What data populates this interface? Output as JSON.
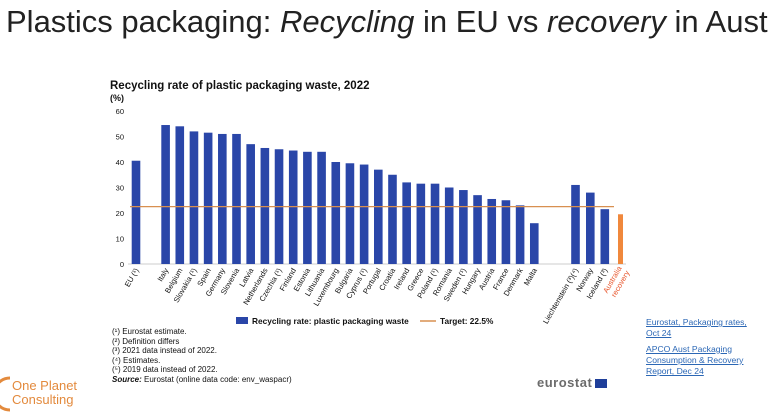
{
  "slide": {
    "title_part1": "Plastics packaging: ",
    "title_part2": "Recycling",
    "title_part3": " in EU vs ",
    "title_part4": "recovery",
    "title_part5": " in Aust"
  },
  "chart_data": {
    "type": "bar",
    "title": "Recycling rate of plastic packaging waste, 2022",
    "ylabel": "(%)",
    "ylim": [
      0,
      60
    ],
    "yticks": [
      0,
      10,
      20,
      30,
      40,
      50,
      60
    ],
    "target": {
      "label": "Target: 22.5%",
      "value": 22.5,
      "color": "#d89050"
    },
    "legend": {
      "series_label": "Recycling rate: plastic packaging waste",
      "position": "bottom"
    },
    "series_color": "#2a46a8",
    "highlight_color": "#f0883c",
    "categories": [
      "EU (¹)",
      "Italy",
      "Belgium",
      "Slovakia (¹)",
      "Spain",
      "Germany",
      "Slovenia",
      "Latvia",
      "Netherlands",
      "Czechia (¹)",
      "Finland",
      "Estonia",
      "Lithuania",
      "Luxembourg",
      "Bulgaria",
      "Cyprus (¹)",
      "Portugal",
      "Croatia",
      "Ireland",
      "Greece",
      "Poland (¹)",
      "Romania",
      "Sweden (¹)",
      "Hungary",
      "Austria",
      "France",
      "Denmark",
      "Malta",
      "Liechtenstein (³)(⁴)",
      "Norway",
      "Iceland (³)",
      "Australia recovery"
    ],
    "values": [
      40.5,
      54.5,
      54,
      52,
      51.5,
      51,
      51,
      47,
      45.5,
      45,
      44.5,
      44,
      44,
      40,
      39.5,
      39,
      37,
      35,
      32,
      31.5,
      31.5,
      30,
      29,
      27,
      25.5,
      25,
      23,
      16,
      31,
      28,
      21.5,
      19.5
    ],
    "highlight_index": 31
  },
  "notes": {
    "n1": "(¹) Eurostat estimate.",
    "n2": "(²) Definition differs",
    "n3": "(³) 2021 data instead of 2022.",
    "n4": "(⁴) Estimates.",
    "n5": "(⁵) 2019 data instead of 2022.",
    "source_label": "Source:",
    "source_text": " Eurostat (online data code: env_waspacr)"
  },
  "references": {
    "ref1": "Eurostat, Packaging rates, Oct 24",
    "ref2": "APCO Aust Packaging Consumption & Recovery Report, Dec 24"
  },
  "logo": {
    "line1": "One Planet",
    "line2": "Consulting",
    "color": "#e38a3d"
  },
  "eurostat": {
    "label": "eurostat"
  }
}
